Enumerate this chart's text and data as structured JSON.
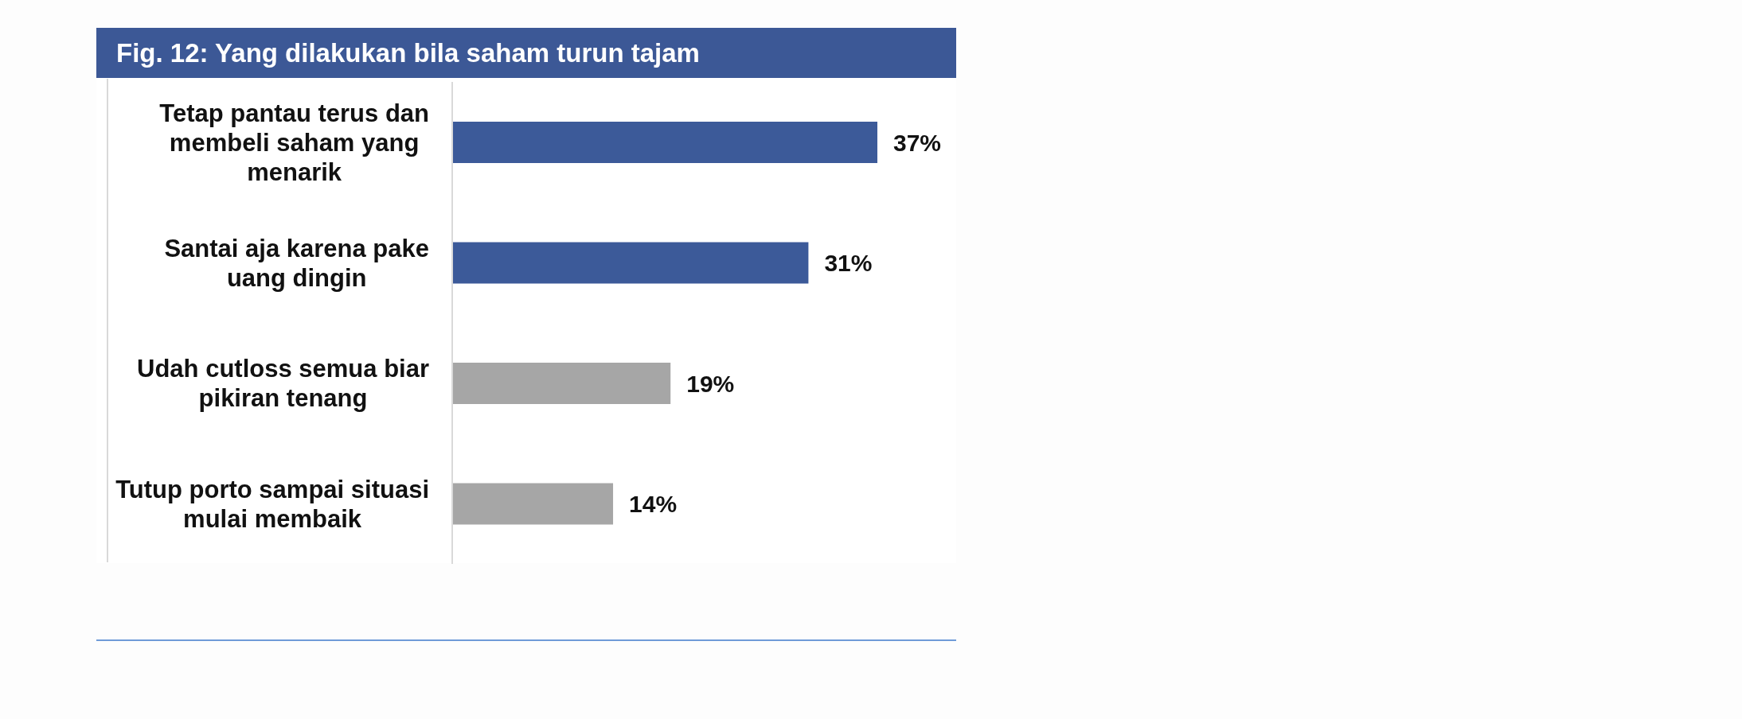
{
  "chart_data": {
    "type": "bar",
    "orientation": "horizontal",
    "title": "Fig. 12: Yang dilakukan bila saham turun tajam",
    "categories": [
      "Tetap pantau terus dan membeli saham yang menarik",
      "Santai aja karena pake uang dingin",
      "Udah cutloss semua biar pikiran tenang",
      "Tutup porto sampai situasi mulai membaik"
    ],
    "values": [
      37,
      31,
      19,
      14
    ],
    "colors": [
      "#3c5a99",
      "#3c5a99",
      "#a6a6a6",
      "#a6a6a6"
    ],
    "value_labels": [
      "37%",
      "31%",
      "19%",
      "14%"
    ]
  }
}
